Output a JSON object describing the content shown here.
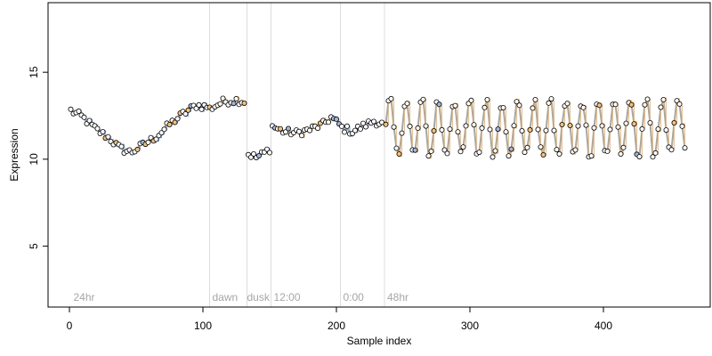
{
  "chart_data": {
    "type": "scatter",
    "title": "",
    "xlabel": "Sample index",
    "ylabel": "Expression",
    "xlim": [
      -16,
      480
    ],
    "ylim": [
      1.5,
      19
    ],
    "x_ticks": [
      0,
      100,
      200,
      300,
      400
    ],
    "y_ticks": [
      5,
      10,
      15
    ],
    "grid": false,
    "legend": "none",
    "colors": {
      "point_edge": "#000000",
      "point_fill_default": "#ffffff",
      "point_fill_high": "#f5c27a",
      "point_fill_low": "#9fb7e0",
      "line_main": "#a6a6a6",
      "line_blue": "#7a9fd6",
      "line_orange": "#f0b463",
      "divider": "#dddddd",
      "annotation": "#a6a6a6"
    },
    "dividers": [
      105,
      133,
      151,
      203,
      236
    ],
    "annotations": [
      {
        "x": 3,
        "text": "24hr"
      },
      {
        "x": 107,
        "text": "dawn"
      },
      {
        "x": 133,
        "text": "dusk"
      },
      {
        "x": 153,
        "text": "12:00"
      },
      {
        "x": 205,
        "text": "0:00"
      },
      {
        "x": 238,
        "text": "48hr"
      }
    ],
    "segments": [
      {
        "name": "segment-1",
        "x_range": [
          1,
          104
        ],
        "anchors": [
          [
            1,
            12.8
          ],
          [
            10,
            12.4
          ],
          [
            20,
            11.7
          ],
          [
            30,
            11.2
          ],
          [
            38,
            10.6
          ],
          [
            46,
            10.4
          ],
          [
            55,
            10.8
          ],
          [
            65,
            11.3
          ],
          [
            75,
            12.0
          ],
          [
            85,
            12.6
          ],
          [
            95,
            13.1
          ],
          [
            104,
            13.0
          ]
        ]
      },
      {
        "name": "segment-2",
        "x_range": [
          105,
          132
        ],
        "anchors": [
          [
            105,
            12.9
          ],
          [
            115,
            13.3
          ],
          [
            125,
            13.4
          ],
          [
            132,
            13.3
          ]
        ]
      },
      {
        "name": "segment-3",
        "x_range": [
          134,
          150
        ],
        "anchors": [
          [
            134,
            10.3
          ],
          [
            140,
            10.1
          ],
          [
            145,
            10.3
          ],
          [
            150,
            10.6
          ]
        ]
      },
      {
        "name": "segment-4",
        "x_range": [
          152,
          202
        ],
        "anchors": [
          [
            152,
            11.9
          ],
          [
            160,
            11.6
          ],
          [
            170,
            11.5
          ],
          [
            180,
            11.7
          ],
          [
            190,
            12.0
          ],
          [
            196,
            12.4
          ],
          [
            202,
            12.0
          ]
        ]
      },
      {
        "name": "segment-5",
        "x_range": [
          204,
          235
        ],
        "anchors": [
          [
            204,
            11.8
          ],
          [
            212,
            11.6
          ],
          [
            220,
            11.9
          ],
          [
            228,
            12.2
          ],
          [
            235,
            12.0
          ]
        ]
      },
      {
        "name": "segment-6",
        "type": "oscillation",
        "x_range": [
          237,
          462
        ],
        "center": 11.8,
        "amplitude": 1.6,
        "period": 12,
        "phase": 0
      }
    ]
  }
}
